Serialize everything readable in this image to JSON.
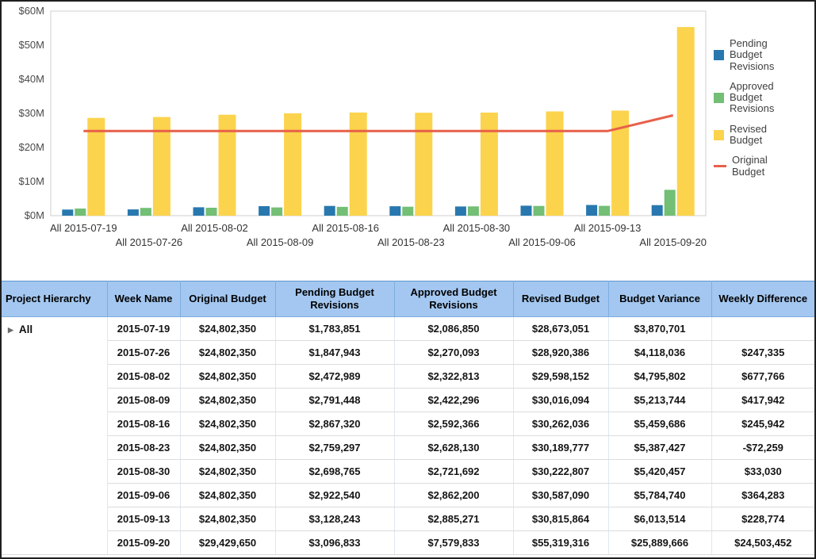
{
  "colors": {
    "pending_bar": "#2878af",
    "approved_bar": "#72bf75",
    "revised_bar": "#fbd34d",
    "original_line": "#e8604a",
    "table_header_bg": "#a3c7f0",
    "table_header_text": "#000000",
    "axis_text": "#4a4a4a",
    "plot_border": "#cfcfcf"
  },
  "chart_data": {
    "type": "combo",
    "title": "",
    "xlabel": "",
    "ylabel": "",
    "ylim": [
      0,
      60
    ],
    "ytick_step": 10,
    "ytick_labels": [
      "$0M",
      "$10M",
      "$20M",
      "$30M",
      "$40M",
      "$50M",
      "$60M"
    ],
    "grid": false,
    "legend_position": "right",
    "x": [
      "All 2015-07-19",
      "All 2015-07-26",
      "All 2015-08-02",
      "All 2015-08-09",
      "All 2015-08-16",
      "All 2015-08-23",
      "All 2015-08-30",
      "All 2015-09-06",
      "All 2015-09-13",
      "All 2015-09-20"
    ],
    "units": "millions USD",
    "series": [
      {
        "name": "Pending Budget Revisions",
        "type": "bar",
        "color": "#2878af",
        "values": [
          1.783851,
          1.847943,
          2.472989,
          2.791448,
          2.86732,
          2.759297,
          2.698765,
          2.92254,
          3.128243,
          3.096833
        ]
      },
      {
        "name": "Approved Budget Revisions",
        "type": "bar",
        "color": "#72bf75",
        "values": [
          2.08685,
          2.270093,
          2.322813,
          2.422296,
          2.592366,
          2.62813,
          2.721692,
          2.8622,
          2.885271,
          7.579833
        ]
      },
      {
        "name": "Revised Budget",
        "type": "bar",
        "color": "#fbd34d",
        "values": [
          28.673051,
          28.920386,
          29.598152,
          30.016094,
          30.262036,
          30.189777,
          30.222807,
          30.58709,
          30.815864,
          55.319316
        ]
      },
      {
        "name": "Original Budget",
        "type": "line",
        "color": "#e8604a",
        "values": [
          24.80235,
          24.80235,
          24.80235,
          24.80235,
          24.80235,
          24.80235,
          24.80235,
          24.80235,
          24.80235,
          29.42965
        ]
      }
    ]
  },
  "table": {
    "columns": [
      "Project Hierarchy",
      "Week Name",
      "Original Budget",
      "Pending Budget Revisions",
      "Approved Budget Revisions",
      "Revised Budget",
      "Budget Variance",
      "Weekly Difference"
    ],
    "hierarchy_label": "All",
    "expander_glyph": "▶",
    "rows": [
      {
        "week": "2015-07-19",
        "original": "$24,802,350",
        "pending": "$1,783,851",
        "approved": "$2,086,850",
        "revised": "$28,673,051",
        "variance": "$3,870,701",
        "weekly": ""
      },
      {
        "week": "2015-07-26",
        "original": "$24,802,350",
        "pending": "$1,847,943",
        "approved": "$2,270,093",
        "revised": "$28,920,386",
        "variance": "$4,118,036",
        "weekly": "$247,335"
      },
      {
        "week": "2015-08-02",
        "original": "$24,802,350",
        "pending": "$2,472,989",
        "approved": "$2,322,813",
        "revised": "$29,598,152",
        "variance": "$4,795,802",
        "weekly": "$677,766"
      },
      {
        "week": "2015-08-09",
        "original": "$24,802,350",
        "pending": "$2,791,448",
        "approved": "$2,422,296",
        "revised": "$30,016,094",
        "variance": "$5,213,744",
        "weekly": "$417,942"
      },
      {
        "week": "2015-08-16",
        "original": "$24,802,350",
        "pending": "$2,867,320",
        "approved": "$2,592,366",
        "revised": "$30,262,036",
        "variance": "$5,459,686",
        "weekly": "$245,942"
      },
      {
        "week": "2015-08-23",
        "original": "$24,802,350",
        "pending": "$2,759,297",
        "approved": "$2,628,130",
        "revised": "$30,189,777",
        "variance": "$5,387,427",
        "weekly": "-$72,259"
      },
      {
        "week": "2015-08-30",
        "original": "$24,802,350",
        "pending": "$2,698,765",
        "approved": "$2,721,692",
        "revised": "$30,222,807",
        "variance": "$5,420,457",
        "weekly": "$33,030"
      },
      {
        "week": "2015-09-06",
        "original": "$24,802,350",
        "pending": "$2,922,540",
        "approved": "$2,862,200",
        "revised": "$30,587,090",
        "variance": "$5,784,740",
        "weekly": "$364,283"
      },
      {
        "week": "2015-09-13",
        "original": "$24,802,350",
        "pending": "$3,128,243",
        "approved": "$2,885,271",
        "revised": "$30,815,864",
        "variance": "$6,013,514",
        "weekly": "$228,774"
      },
      {
        "week": "2015-09-20",
        "original": "$29,429,650",
        "pending": "$3,096,833",
        "approved": "$7,579,833",
        "revised": "$55,319,316",
        "variance": "$25,889,666",
        "weekly": "$24,503,452"
      }
    ]
  }
}
